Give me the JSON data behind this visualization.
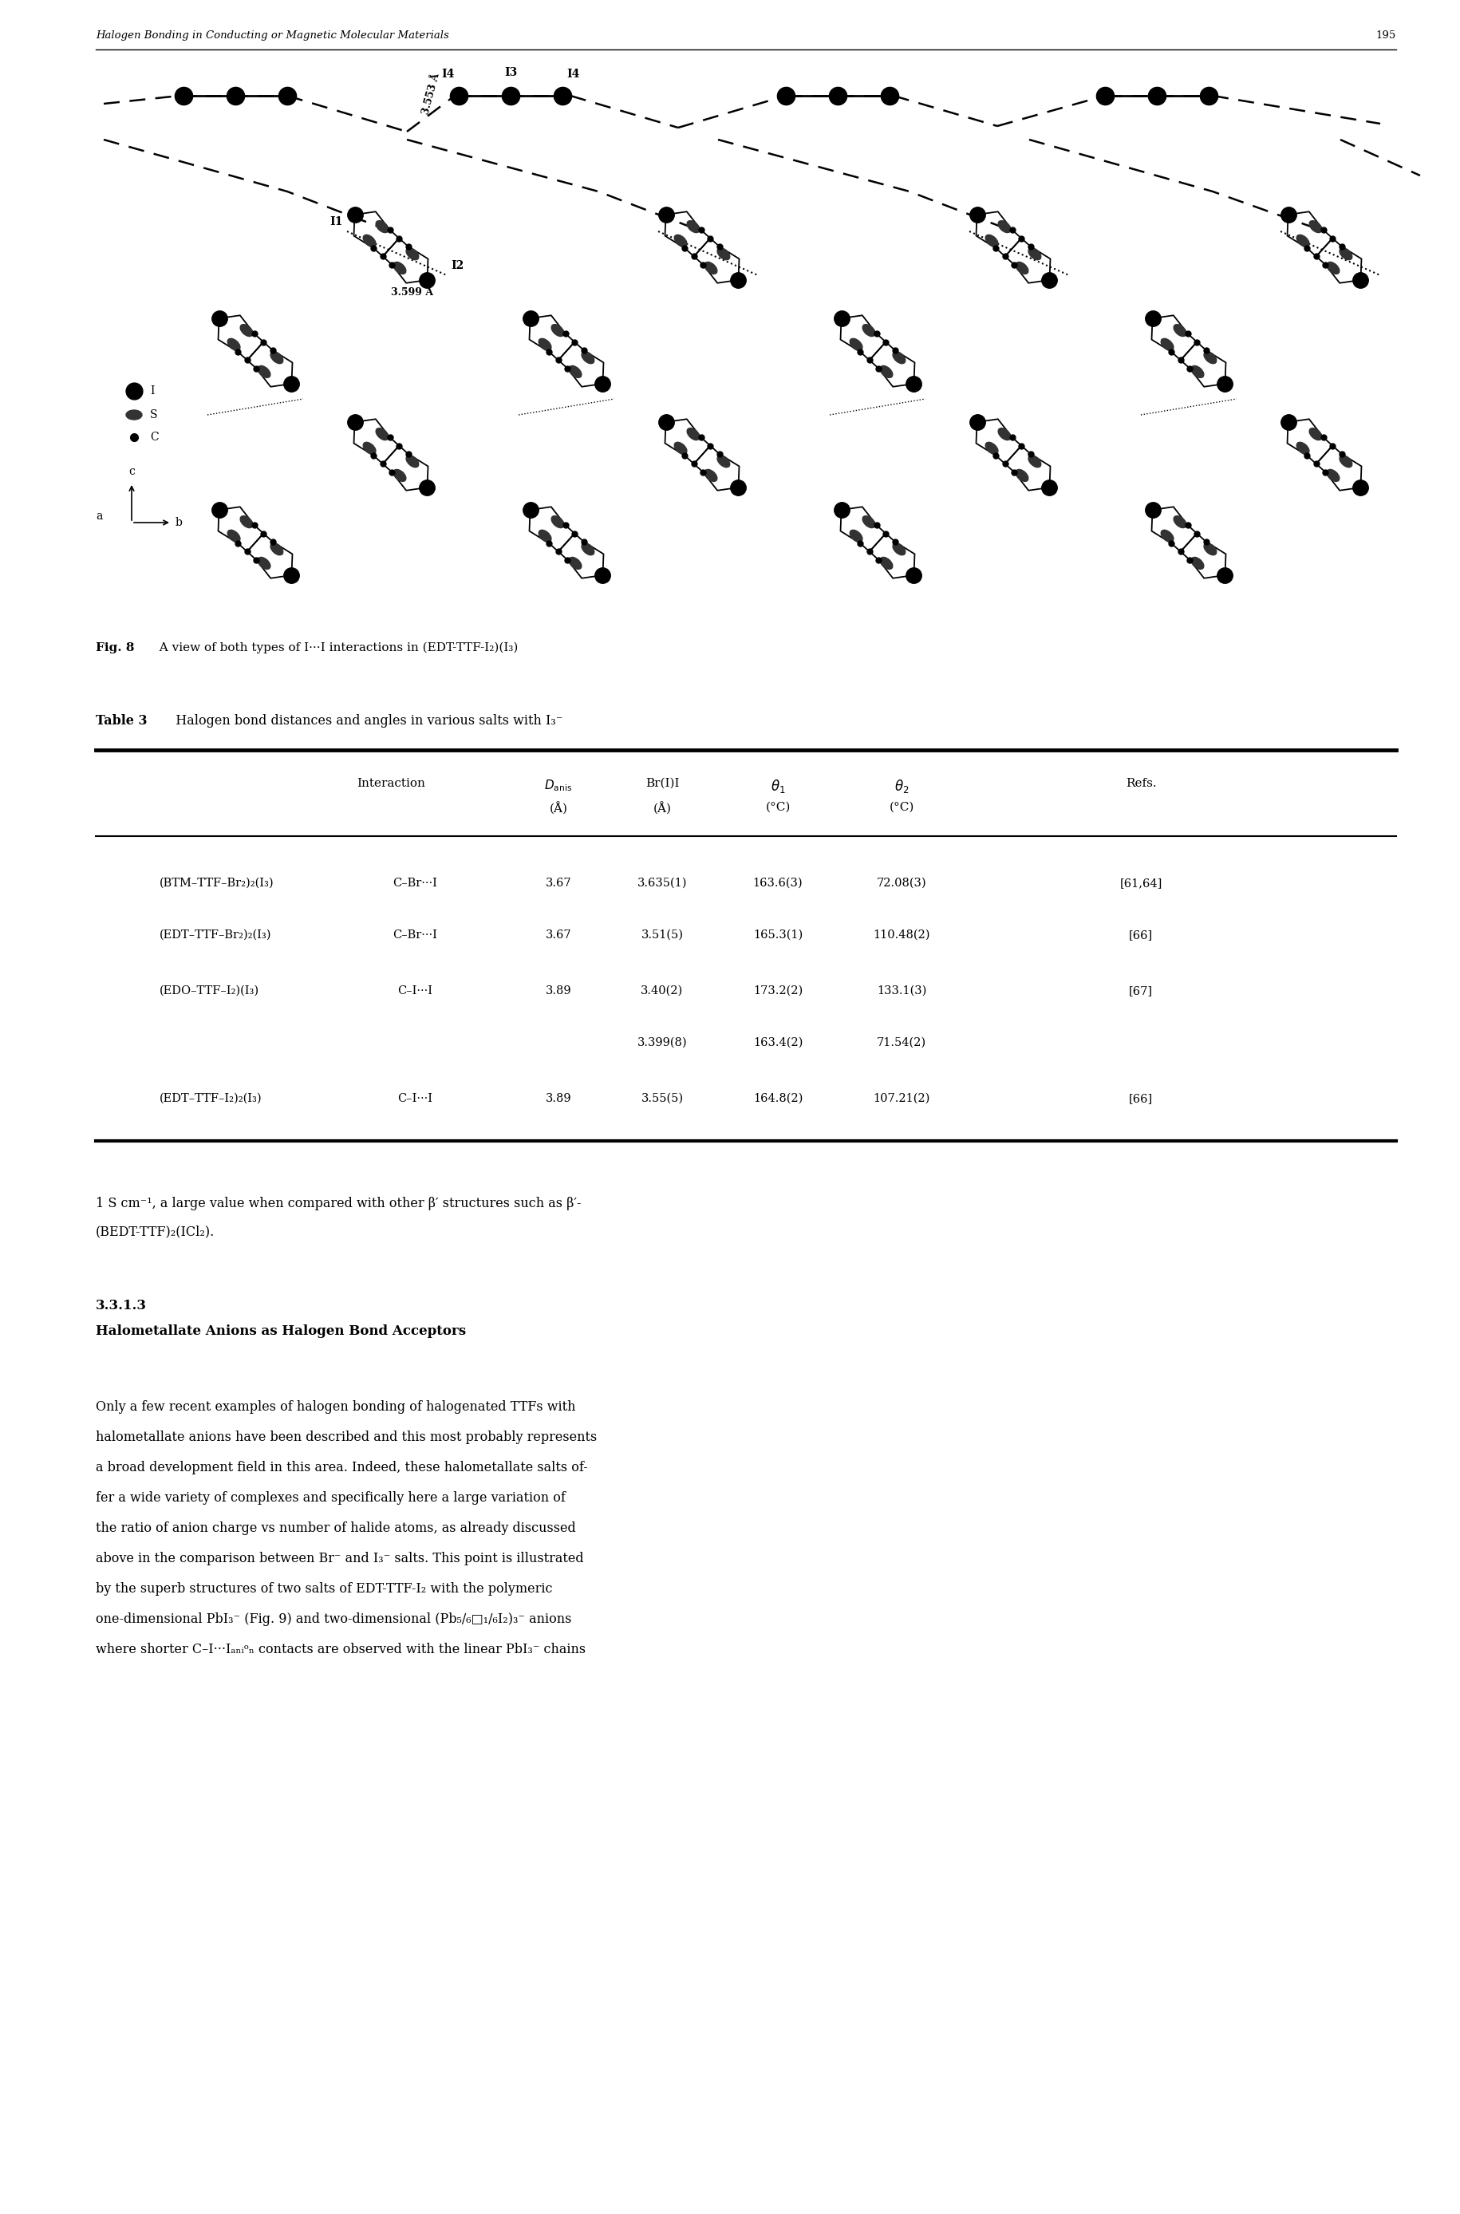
{
  "page_header": "Halogen Bonding in Conducting or Magnetic Molecular Materials",
  "page_number": "195",
  "fig_caption_bold": "Fig. 8",
  "fig_caption_rest": "  A view of both types of I···I interactions in (EDT-TTF-I₂)(I₃)",
  "table_title_bold": "Table 3",
  "table_title_rest": "  Halogen bond distances and angles in various salts with I₃⁻",
  "col_header_1": "Interaction",
  "col_header_2": "D_anis",
  "col_header_2b": "(Å)",
  "col_header_3": "Br(I)I",
  "col_header_3b": "(Å)",
  "col_header_4": "θ1",
  "col_header_4b": "(°C)",
  "col_header_5": "θ2",
  "col_header_5b": "(°C)",
  "col_header_6": "Refs.",
  "rows": [
    [
      "(BTM–TTF–Br₂)₂(I₃)",
      "C–Br···I",
      "3.67",
      "3.635(1)",
      "163.6(3)",
      "72.08(3)",
      "[61,64]"
    ],
    [
      "(EDT–TTF–Br₂)₂(I₃)",
      "C–Br···I",
      "3.67",
      "3.51(5)",
      "165.3(1)",
      "110.48(2)",
      "[66]"
    ],
    [
      "(EDO–TTF–I₂)(I₃)",
      "C–I···I",
      "3.89",
      "3.40(2)",
      "173.2(2)",
      "133.1(3)",
      "[67]"
    ],
    [
      "",
      "",
      "",
      "3.399(8)",
      "163.4(2)",
      "71.54(2)",
      ""
    ],
    [
      "(EDT–TTF–I₂)₂(I₃)",
      "C–I···I",
      "3.89",
      "3.55(5)",
      "164.8(2)",
      "107.21(2)",
      "[66]"
    ]
  ],
  "body1_line1": "1 S cm⁻¹, a large value when compared with other β′ structures such as β′-",
  "body1_line2": "(BEDT-TTF)₂(ICl₂).",
  "section_num": "3.3.1.3",
  "section_title": "Halometallate Anions as Halogen Bond Acceptors",
  "body2_lines": [
    "Only a few recent examples of halogen bonding of halogenated TTFs with",
    "halometallate anions have been described and this most probably represents",
    "a broad development field in this area. Indeed, these halometallate salts of-",
    "fer a wide variety of complexes and specifically here a large variation of",
    "the ratio of anion charge vs number of halide atoms, as already discussed",
    "above in the comparison between Br⁻ and I₃⁻ salts. This point is illustrated",
    "by the superb structures of two salts of EDT-TTF-I₂ with the polymeric",
    "one-dimensional PbI₃⁻ (Fig. 9) and two-dimensional (Pb₅/₆□₁/₆I₂)₃⁻ anions",
    "where shorter C–I···Iₐₙᵢᵒₙ contacts are observed with the linear PbI₃⁻ chains"
  ],
  "bg_color": "#ffffff",
  "label_I4_left": "I4",
  "label_I3": "I3",
  "label_I4_right": "I4",
  "label_I1": "I1",
  "label_I2": "I2",
  "label_dist1": "3.553 Å",
  "label_dist2": "3.599 Å",
  "legend_I": "I",
  "legend_S": "S",
  "legend_C": "C"
}
